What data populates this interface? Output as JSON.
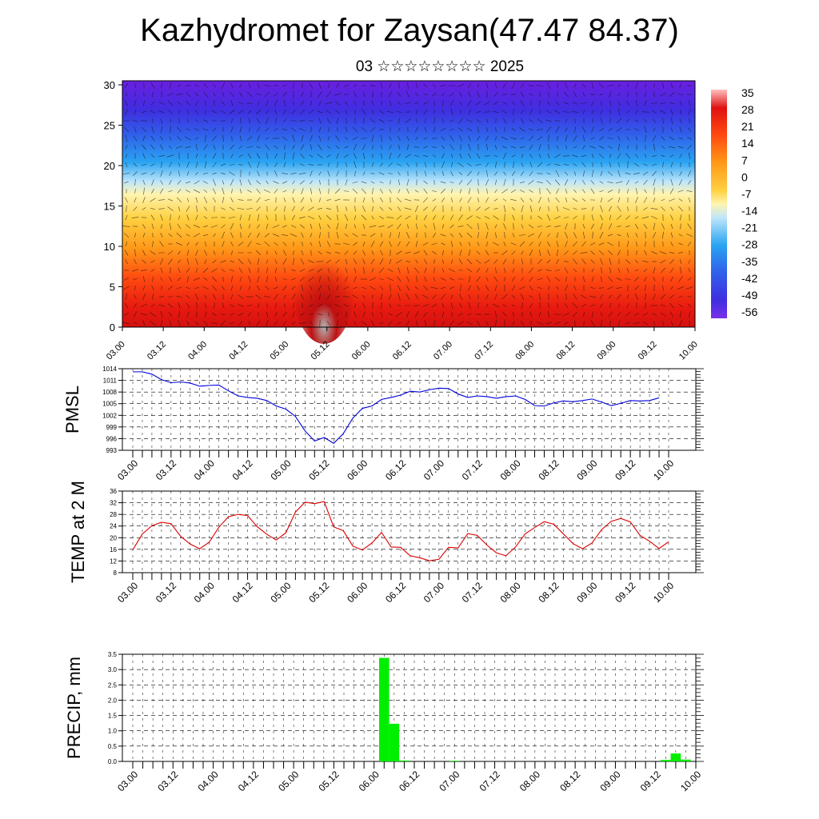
{
  "title": "Kazhydromet for Zaysan(47.47 84.37)",
  "subtitle": "03 ☆☆☆☆☆☆☆☆ 2025",
  "chart_data": [
    {
      "type": "heatmap",
      "title": "",
      "xlabel": "",
      "ylabel": "",
      "x_ticks": [
        "03.00",
        "03.12",
        "04.00",
        "04.12",
        "05.00",
        "05.12",
        "06.00",
        "06.12",
        "07.00",
        "07.12",
        "08.00",
        "08.12",
        "09.00",
        "09.12",
        "10.00"
      ],
      "y_ticks": [
        "0",
        "5",
        "10",
        "15",
        "20",
        "25",
        "30"
      ],
      "ylim": [
        0,
        30.5
      ],
      "colorbar_labels": [
        "35",
        "28",
        "21",
        "14",
        "7",
        "0",
        "-7",
        "-14",
        "-21",
        "-28",
        "-35",
        "-42",
        "-49",
        "-56"
      ],
      "color_stops": [
        "#7b2fe6",
        "#3a1fd6",
        "#2f5ce8",
        "#2aa0f0",
        "#b5dff6",
        "#fff7b8",
        "#ffd84a",
        "#ff9a1e",
        "#ff4d10",
        "#e01010",
        "#b80808",
        "#ffbebe"
      ],
      "overlay": "wind vectors"
    },
    {
      "type": "line",
      "ylabel": "PMSL",
      "x_ticks": [
        "03.00",
        "03.12",
        "04.00",
        "04.12",
        "05.00",
        "05.12",
        "06.00",
        "06.12",
        "07.00",
        "07.12",
        "08.00",
        "08.12",
        "09.00",
        "09.12",
        "10.00"
      ],
      "y_ticks": [
        "993",
        "996",
        "999",
        "1002",
        "1005",
        "1008",
        "1011",
        "1014"
      ],
      "ylim": [
        993,
        1014
      ],
      "series": [
        {
          "values": [
            1013.2,
            1013.2,
            1012.6,
            1011.2,
            1010.4,
            1010.6,
            1010.3,
            1009.5,
            1009.7,
            1009.8,
            1008.3,
            1007,
            1006.6,
            1006.4,
            1005.8,
            1004.4,
            1003.6,
            1001.7,
            998,
            995.4,
            996.3,
            994.8,
            997.3,
            1001.3,
            1003.8,
            1004.4,
            1006.1,
            1006.6,
            1007.2,
            1008.2,
            1008,
            1008.6,
            1009,
            1008.9,
            1007.5,
            1006.6,
            1007,
            1006.8,
            1006.4,
            1006.8,
            1007,
            1006.1,
            1004.5,
            1004.4,
            1005.2,
            1005.7,
            1005.5,
            1005.8,
            1006.2,
            1005.4,
            1004.5,
            1005.1,
            1005.8,
            1005.7,
            1005.8,
            1006.5
          ],
          "color": "#0000dd"
        }
      ]
    },
    {
      "type": "line",
      "ylabel": "TEMP at 2 M",
      "x_ticks": [
        "03.00",
        "03.12",
        "04.00",
        "04.12",
        "05.00",
        "05.12",
        "06.00",
        "06.12",
        "07.00",
        "07.12",
        "08.00",
        "08.12",
        "09.00",
        "09.12",
        "10.00"
      ],
      "y_ticks": [
        "8",
        "12",
        "16",
        "20",
        "24",
        "28",
        "32",
        "36"
      ],
      "ylim": [
        8,
        36
      ],
      "series": [
        {
          "values": [
            15.8,
            21.3,
            24.1,
            25.3,
            24.8,
            20.5,
            17.8,
            16.2,
            18.5,
            23.6,
            27.2,
            28,
            27.6,
            23.8,
            21.2,
            19.2,
            21.7,
            28.8,
            32.2,
            31.7,
            32.4,
            23.7,
            22.4,
            17.1,
            15.8,
            18.2,
            21.8,
            16.8,
            16.7,
            13.8,
            13.1,
            12.1,
            12.6,
            16.7,
            16.5,
            21.4,
            20.8,
            17.5,
            14.8,
            13.8,
            16.8,
            21.3,
            23.5,
            25.5,
            24.6,
            21.3,
            18,
            16.2,
            18.2,
            22.8,
            25.6,
            26.6,
            25.4,
            20.8,
            18.8,
            16.3,
            18.6
          ],
          "color": "#dd0000"
        }
      ]
    },
    {
      "type": "bar",
      "ylabel": "PRECIP, mm",
      "x_ticks": [
        "03.00",
        "03.12",
        "04.00",
        "04.12",
        "05.00",
        "05.12",
        "06.00",
        "06.12",
        "07.00",
        "07.12",
        "08.00",
        "08.12",
        "09.00",
        "09.12",
        "10.00"
      ],
      "y_ticks": [
        "0.0",
        "0.5",
        "1.0",
        "1.5",
        "2.0",
        "2.5",
        "3.0",
        "3.5"
      ],
      "ylim": [
        0,
        3.5
      ],
      "bars": [
        {
          "x_hours": 75,
          "value": 3.38
        },
        {
          "x_hours": 78,
          "value": 1.23
        },
        {
          "x_hours": 81,
          "value": 0.03
        },
        {
          "x_hours": 96,
          "value": 0.02
        },
        {
          "x_hours": 159,
          "value": 0.05
        },
        {
          "x_hours": 162,
          "value": 0.26
        },
        {
          "x_hours": 165,
          "value": 0.06
        }
      ],
      "color": "#00ee00"
    }
  ]
}
